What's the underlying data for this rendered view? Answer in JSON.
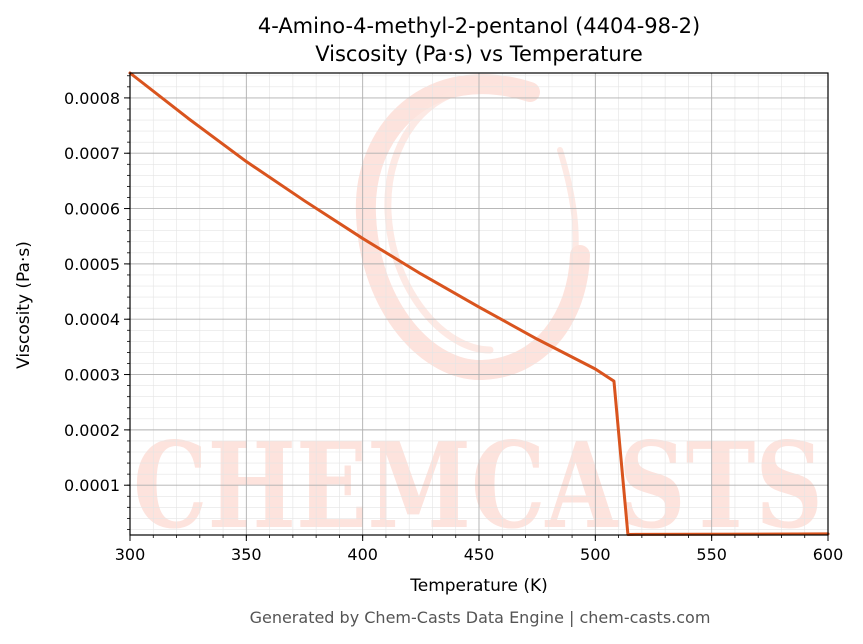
{
  "title": "4-Amino-4-methyl-2-pentanol (4404-98-2)",
  "subtitle": "Viscosity (Pa·s) vs Temperature",
  "footer": "Generated by Chem-Casts Data Engine | chem-casts.com",
  "watermark": "CHEMCASTS",
  "colors": {
    "line": "#d9541e",
    "watermark": "#fde3dd",
    "grid_major": "#b0b0b0",
    "grid_minor": "#e4e4e4"
  },
  "chart_data": {
    "type": "line",
    "title": "4-Amino-4-methyl-2-pentanol (4404-98-2)",
    "subtitle": "Viscosity (Pa·s) vs Temperature",
    "xlabel": "Temperature (K)",
    "ylabel": "Viscosity (Pa·s)",
    "xlim": [
      300,
      600
    ],
    "ylim": [
      1e-05,
      0.000845
    ],
    "xticks": [
      300,
      350,
      400,
      450,
      500,
      550,
      600
    ],
    "xtick_labels": [
      "300",
      "350",
      "400",
      "450",
      "500",
      "550",
      "600"
    ],
    "yticks": [
      0.0001,
      0.0002,
      0.0003,
      0.0004,
      0.0005,
      0.0006,
      0.0007,
      0.0008
    ],
    "ytick_labels": [
      "0.0001",
      "0.0002",
      "0.0003",
      "0.0004",
      "0.0005",
      "0.0006",
      "0.0007",
      "0.0008"
    ],
    "grid": true,
    "series": [
      {
        "x": [
          300,
          325,
          350,
          375,
          400,
          425,
          450,
          475,
          500,
          508,
          514,
          600
        ],
        "y": [
          0.000845,
          0.000763,
          0.000685,
          0.000614,
          0.000546,
          0.000482,
          0.000422,
          0.000364,
          0.00031,
          0.000288,
          1.1e-05,
          1.2e-05
        ]
      }
    ]
  }
}
